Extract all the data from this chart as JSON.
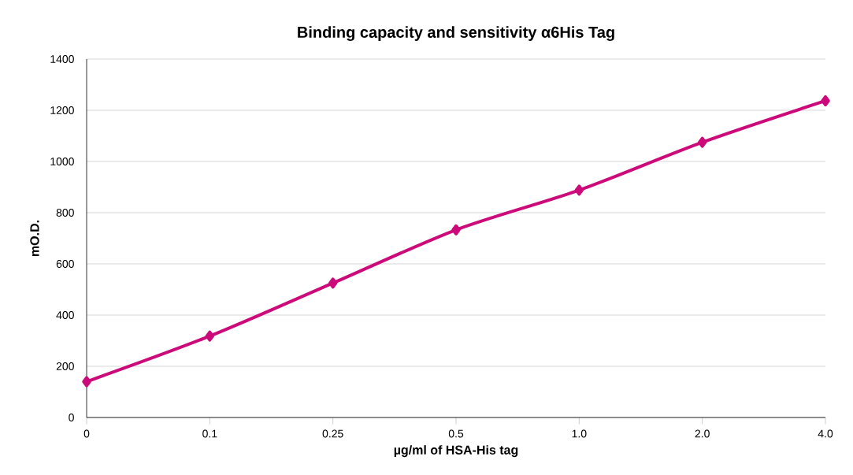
{
  "chart_data": {
    "type": "line",
    "title": "Binding capacity and sensitivity α6His Tag",
    "xlabel": "µg/ml of HSA-His tag",
    "ylabel": "mO.D.",
    "categories": [
      "0",
      "0.1",
      "0.25",
      "0.5",
      "1.0",
      "2.0",
      "4.0"
    ],
    "series": [
      {
        "color": "#cc0a7a",
        "values": [
          140,
          318,
          525,
          733,
          888,
          1075,
          1237
        ]
      }
    ],
    "ylim": [
      0,
      1400
    ],
    "yticks": [
      0,
      200,
      400,
      600,
      800,
      1000,
      1200,
      1400
    ],
    "grid": "y",
    "marker": "diamond",
    "line_style": "solid"
  }
}
